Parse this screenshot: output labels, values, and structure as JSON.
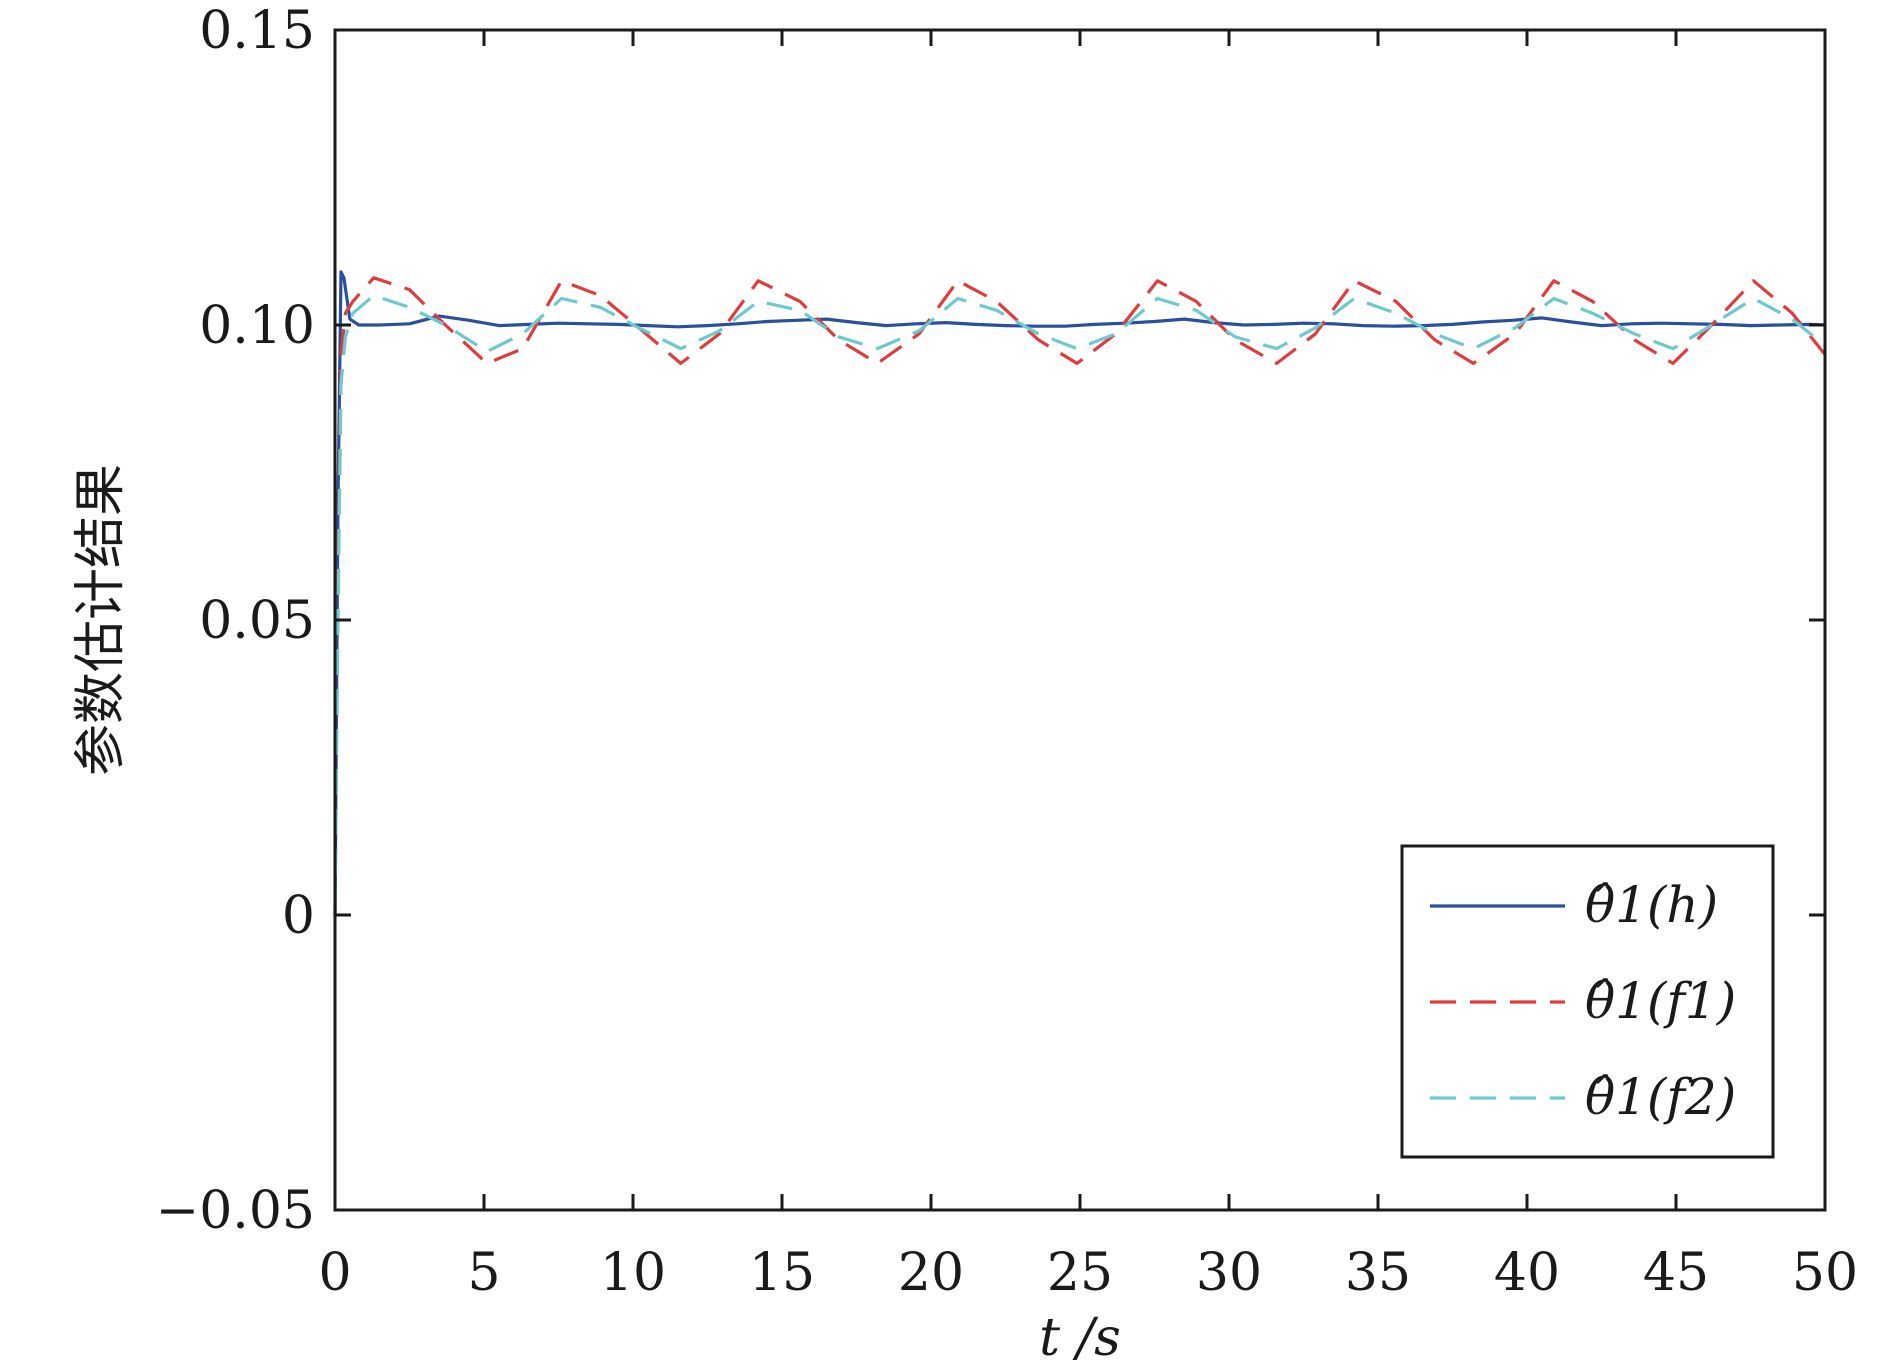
{
  "chart_data": {
    "type": "line",
    "title": "",
    "xlabel": "t /s",
    "ylabel": "参数估计结果",
    "xlim": [
      0,
      50
    ],
    "ylim": [
      -0.05,
      0.15
    ],
    "xticks": [
      0,
      5,
      10,
      15,
      20,
      25,
      30,
      35,
      40,
      45,
      50
    ],
    "yticks": [
      -0.05,
      0,
      0.05,
      0.1,
      0.15
    ],
    "xtick_labels": [
      "0",
      "5",
      "10",
      "15",
      "20",
      "25",
      "30",
      "35",
      "40",
      "45",
      "50"
    ],
    "ytick_labels": [
      "−0.05",
      "0",
      "0.05",
      "0.10",
      "0.15"
    ],
    "grid": false,
    "legend_position": "bottom-right",
    "series": [
      {
        "name": "θ̂1(h)",
        "color": "#2b4f9e",
        "style": "solid",
        "x": [
          0,
          0.1,
          0.2,
          0.3,
          0.5,
          0.8,
          1.5,
          2.5,
          3.5,
          4.5,
          5.5,
          6.5,
          7.5,
          8.5,
          9.5,
          10.5,
          11.5,
          12.5,
          13.5,
          14.5,
          15.5,
          16.5,
          17.5,
          18.5,
          19.5,
          20.5,
          21.5,
          22.5,
          23.5,
          24.5,
          25.5,
          26.5,
          27.5,
          28.5,
          29.5,
          30.5,
          31.5,
          32.5,
          33.5,
          34.5,
          35.5,
          36.5,
          37.5,
          38.5,
          39.5,
          40.5,
          41.5,
          42.5,
          43.5,
          44.5,
          45.5,
          46.5,
          47.5,
          48.5,
          49.5,
          50
        ],
        "y": [
          0,
          0.07,
          0.109,
          0.108,
          0.101,
          0.1,
          0.1,
          0.1002,
          0.1015,
          0.1008,
          0.0999,
          0.1001,
          0.1003,
          0.1002,
          0.1001,
          0.0999,
          0.0997,
          0.0999,
          0.1002,
          0.1006,
          0.1008,
          0.101,
          0.1004,
          0.0999,
          0.1002,
          0.1004,
          0.1001,
          0.0999,
          0.0998,
          0.0998,
          0.1001,
          0.1003,
          0.1006,
          0.101,
          0.1004,
          0.1,
          0.1001,
          0.1003,
          0.1002,
          0.0999,
          0.0998,
          0.0999,
          0.1001,
          0.1005,
          0.1008,
          0.1012,
          0.1005,
          0.0999,
          0.1002,
          0.1003,
          0.1002,
          0.1001,
          0.0999,
          0.1,
          0.1001,
          0.1
        ]
      },
      {
        "name": "θ̂1(f1)",
        "color": "#e03c3c",
        "style": "dashed",
        "x": [
          0,
          0.1,
          0.2,
          0.35,
          0.6,
          1.3,
          2.5,
          3.7,
          5.1,
          6.3,
          7.6,
          8.9,
          10.2,
          11.6,
          12.9,
          14.2,
          15.6,
          16.9,
          18.2,
          19.6,
          20.9,
          22.2,
          23.6,
          24.9,
          26.2,
          27.6,
          28.9,
          30.2,
          31.6,
          32.9,
          34.2,
          35.6,
          36.9,
          38.2,
          39.6,
          40.9,
          42.2,
          43.6,
          44.9,
          46.2,
          47.6,
          48.9,
          50
        ],
        "y": [
          0,
          0.06,
          0.095,
          0.102,
          0.104,
          0.108,
          0.106,
          0.1,
          0.0935,
          0.096,
          0.1075,
          0.105,
          0.0995,
          0.0935,
          0.0985,
          0.1075,
          0.104,
          0.0975,
          0.0935,
          0.0985,
          0.1075,
          0.104,
          0.0975,
          0.0935,
          0.0985,
          0.1075,
          0.104,
          0.0975,
          0.0935,
          0.0985,
          0.1075,
          0.104,
          0.0975,
          0.0935,
          0.0985,
          0.1075,
          0.104,
          0.0975,
          0.0935,
          0.1,
          0.1075,
          0.102,
          0.095
        ]
      },
      {
        "name": "θ̂1(f2)",
        "color": "#6cc9cf",
        "style": "dashed",
        "x": [
          0,
          0.1,
          0.2,
          0.35,
          0.6,
          1.3,
          2.5,
          3.7,
          5.1,
          6.3,
          7.6,
          8.9,
          10.2,
          11.6,
          12.9,
          14.2,
          15.6,
          16.9,
          18.2,
          19.6,
          20.9,
          22.2,
          23.6,
          24.9,
          26.2,
          27.6,
          28.9,
          30.2,
          31.6,
          32.9,
          34.2,
          35.6,
          36.9,
          38.2,
          39.6,
          40.9,
          42.2,
          43.6,
          44.9,
          46.2,
          47.6,
          48.9,
          50
        ],
        "y": [
          0,
          0.05,
          0.09,
          0.098,
          0.102,
          0.105,
          0.103,
          0.1,
          0.0955,
          0.0985,
          0.1045,
          0.103,
          0.0995,
          0.096,
          0.099,
          0.104,
          0.1025,
          0.098,
          0.096,
          0.099,
          0.1045,
          0.1025,
          0.0985,
          0.096,
          0.0985,
          0.1045,
          0.1025,
          0.098,
          0.096,
          0.0995,
          0.1045,
          0.102,
          0.0985,
          0.096,
          0.0995,
          0.1045,
          0.102,
          0.0985,
          0.096,
          0.1,
          0.1045,
          0.101,
          0.0965
        ]
      }
    ]
  }
}
